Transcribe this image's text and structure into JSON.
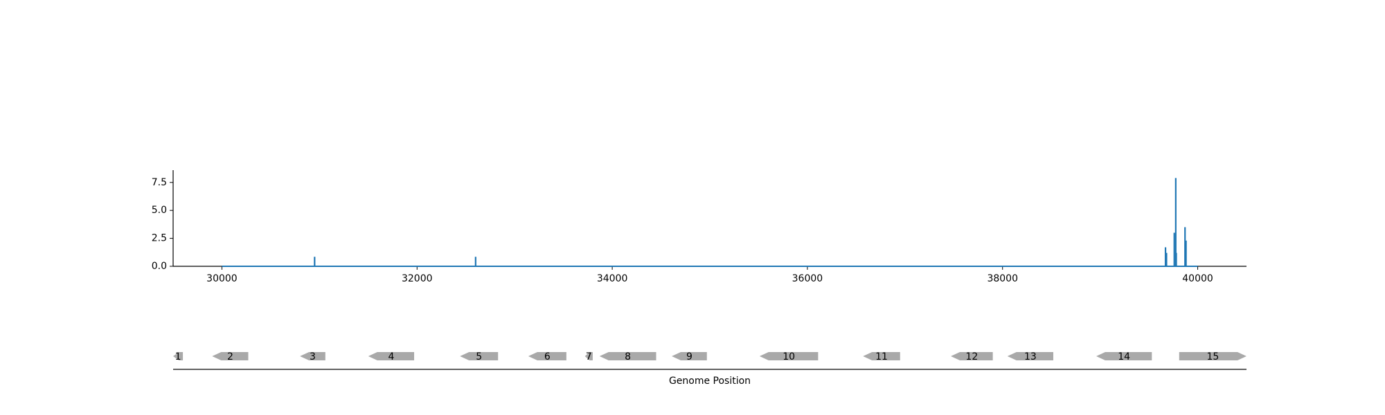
{
  "chart_data": {
    "type": "line",
    "coverage_plot": {
      "xlim": [
        29500,
        40500
      ],
      "ylim": [
        0,
        8.6
      ],
      "x_ticks": [
        30000,
        32000,
        34000,
        36000,
        38000,
        40000
      ],
      "y_ticks": [
        "0.0",
        "2.5",
        "5.0",
        "7.5"
      ],
      "y_tick_values": [
        0.0,
        2.5,
        5.0,
        7.5
      ],
      "line_color": "#1f77b4",
      "baseline_range": [
        30000,
        40000
      ],
      "peaks": [
        {
          "x": 30950,
          "y": 0.85
        },
        {
          "x": 32600,
          "y": 0.85
        },
        {
          "x": 39670,
          "y": 1.7
        },
        {
          "x": 39680,
          "y": 1.2
        },
        {
          "x": 39760,
          "y": 3.0
        },
        {
          "x": 39775,
          "y": 7.9
        },
        {
          "x": 39780,
          "y": 1.2
        },
        {
          "x": 39870,
          "y": 3.5
        },
        {
          "x": 39880,
          "y": 2.3
        }
      ]
    },
    "gene_track": {
      "xlabel": "Genome Position",
      "gene_color": "#a9a9a9",
      "genes": [
        {
          "label": "1",
          "start": 29500,
          "end": 29600,
          "strand": "-"
        },
        {
          "label": "2",
          "start": 29900,
          "end": 30270,
          "strand": "-"
        },
        {
          "label": "3",
          "start": 30800,
          "end": 31060,
          "strand": "-"
        },
        {
          "label": "4",
          "start": 31500,
          "end": 31970,
          "strand": "-"
        },
        {
          "label": "5",
          "start": 32440,
          "end": 32830,
          "strand": "-"
        },
        {
          "label": "6",
          "start": 33140,
          "end": 33530,
          "strand": "-"
        },
        {
          "label": "7",
          "start": 33720,
          "end": 33800,
          "strand": "-"
        },
        {
          "label": "8",
          "start": 33870,
          "end": 34450,
          "strand": "-"
        },
        {
          "label": "9",
          "start": 34610,
          "end": 34970,
          "strand": "-"
        },
        {
          "label": "10",
          "start": 35510,
          "end": 36110,
          "strand": "-"
        },
        {
          "label": "11",
          "start": 36570,
          "end": 36950,
          "strand": "-"
        },
        {
          "label": "12",
          "start": 37470,
          "end": 37900,
          "strand": "-"
        },
        {
          "label": "13",
          "start": 38050,
          "end": 38520,
          "strand": "-"
        },
        {
          "label": "14",
          "start": 38960,
          "end": 39530,
          "strand": "-"
        },
        {
          "label": "15",
          "start": 39810,
          "end": 40500,
          "strand": "+"
        }
      ]
    }
  }
}
